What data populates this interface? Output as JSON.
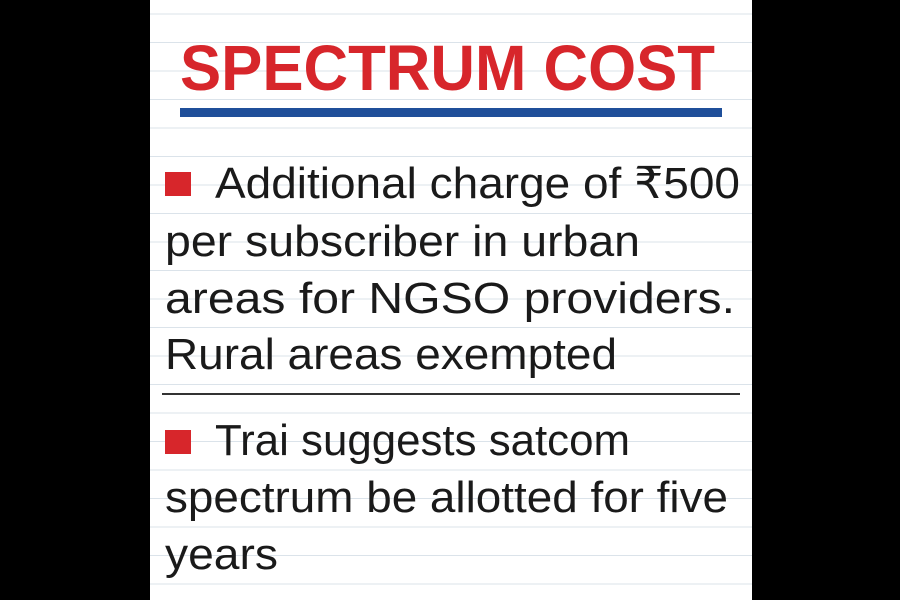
{
  "header": {
    "title": "SPECTRUM COST"
  },
  "items": [
    {
      "lines": [
        "Additional charge of ₹500",
        "per subscriber in urban",
        "areas for NGSO providers.",
        "Rural areas exempted"
      ]
    },
    {
      "lines": [
        "Trai suggests satcom",
        "spectrum be allotted for five",
        "years"
      ]
    }
  ]
}
